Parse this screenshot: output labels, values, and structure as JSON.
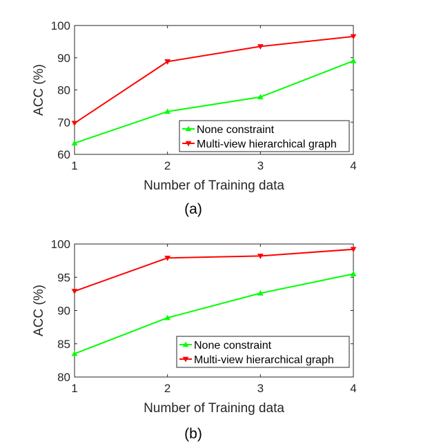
{
  "colors": {
    "none_constraint": "#00ff00",
    "multiview": "#ff0000",
    "axis": "#262626"
  },
  "chart_data": [
    {
      "type": "line",
      "caption": "(a)",
      "title": "",
      "xlabel": "Number of Training data",
      "ylabel": "ACC (%)",
      "x": [
        1,
        2,
        3,
        4
      ],
      "xticks": [
        "1",
        "2",
        "3",
        "4"
      ],
      "yticks": [
        "60",
        "70",
        "80",
        "90",
        "100"
      ],
      "xlim": [
        1,
        4
      ],
      "ylim": [
        60,
        100
      ],
      "grid": false,
      "legend_position": "bottom-right",
      "series": [
        {
          "name": "None constraint",
          "color": "#00ff00",
          "marker": "triangle-up",
          "values": [
            63.5,
            73.3,
            77.8,
            89.0
          ]
        },
        {
          "name": "Multi-view hierarchical graph",
          "color": "#ff0000",
          "marker": "triangle-down",
          "values": [
            69.7,
            88.8,
            93.5,
            96.6
          ]
        }
      ]
    },
    {
      "type": "line",
      "caption": "(b)",
      "title": "",
      "xlabel": "Number of Training data",
      "ylabel": "ACC (%)",
      "x": [
        1,
        2,
        3,
        4
      ],
      "xticks": [
        "1",
        "2",
        "3",
        "4"
      ],
      "yticks": [
        "80",
        "85",
        "90",
        "95",
        "100"
      ],
      "xlim": [
        1,
        4
      ],
      "ylim": [
        80,
        100
      ],
      "grid": false,
      "legend_position": "bottom-right",
      "series": [
        {
          "name": "None constraint",
          "color": "#00ff00",
          "marker": "triangle-up",
          "values": [
            83.5,
            88.9,
            92.6,
            95.5
          ]
        },
        {
          "name": "Multi-view hierarchical graph",
          "color": "#ff0000",
          "marker": "triangle-down",
          "values": [
            92.9,
            97.9,
            98.2,
            99.2
          ]
        }
      ]
    }
  ]
}
